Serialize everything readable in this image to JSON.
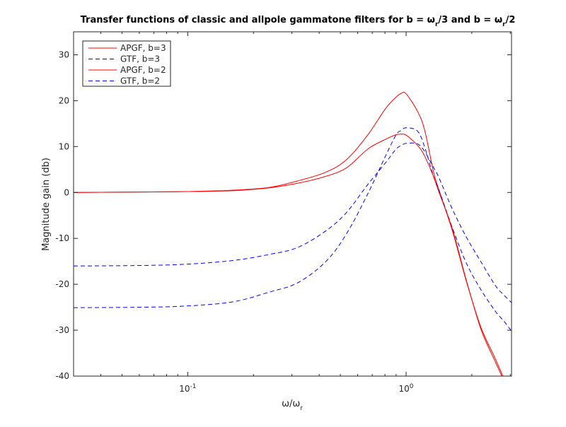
{
  "chart_data": {
    "type": "line",
    "title_parts": [
      "Transfer functions of classic and allpole gammatone filters for b = ω",
      "r",
      "/3 and b = ω",
      "r",
      "/2"
    ],
    "xlabel_parts": [
      "ω/ω",
      "r"
    ],
    "ylabel": "Magnitude gain (db)",
    "xscale": "log",
    "xlim": [
      0.03,
      3.04
    ],
    "ylim": [
      -40,
      35
    ],
    "yticks": [
      -40,
      -30,
      -20,
      -10,
      0,
      10,
      20,
      30
    ],
    "ytick_labels": [
      "-40",
      "-30",
      "-20",
      "-10",
      "0",
      "10",
      "20",
      "30"
    ],
    "xticks": [
      0.1,
      1
    ],
    "xtick_labels": [
      {
        "base": "10",
        "exp": "-1"
      },
      {
        "base": "10",
        "exp": "0"
      }
    ],
    "grid": false,
    "legend_position": "top-left",
    "x": [
      0.03,
      0.0616,
      0.1,
      0.162,
      0.236,
      0.318,
      0.428,
      0.535,
      0.669,
      0.806,
      0.901,
      0.95,
      1.0,
      1.127,
      1.214,
      1.337,
      1.409,
      1.635,
      1.897,
      2.203,
      2.556,
      2.8,
      3.04
    ],
    "series": [
      {
        "name": "APGF, b=3",
        "color": "#ff0000",
        "dash": "solid",
        "values": [
          0,
          0.1,
          0.2,
          0.5,
          1.1,
          2.5,
          4.4,
          7.2,
          12.6,
          18.3,
          20.8,
          21.6,
          21.5,
          17.7,
          13.7,
          4.4,
          0.8,
          -8.6,
          -19.7,
          -29.4,
          -36.1,
          -40.5,
          -45
        ]
      },
      {
        "name": "GTF, b=3",
        "color": "#0000ff",
        "dash": "dashed",
        "values": [
          -25.1,
          -25,
          -24.7,
          -23.8,
          -21.7,
          -19.7,
          -15.1,
          -8.9,
          -0.2,
          8.0,
          12.6,
          13.5,
          14.1,
          13.4,
          10,
          3.4,
          0.8,
          -7.9,
          -15.6,
          -21.2,
          -25.8,
          -28,
          -30.2
        ]
      },
      {
        "name": "APGF, b=2",
        "color": "#ff0000",
        "dash": "solid",
        "values": [
          0,
          0.1,
          0.2,
          0.4,
          1.0,
          2.0,
          3.5,
          5.4,
          9.5,
          11.6,
          12.6,
          12.7,
          12.5,
          10.3,
          8.0,
          3.4,
          0.3,
          -8.2,
          -19.5,
          -29.8,
          -36.8,
          -41,
          -46
        ]
      },
      {
        "name": "GTF, b=2",
        "color": "#0000ff",
        "dash": "dashed",
        "values": [
          -16,
          -15.9,
          -15.6,
          -14.8,
          -13.5,
          -12,
          -8.4,
          -4.3,
          1.8,
          6.5,
          9.5,
          10.2,
          10.7,
          10.6,
          9.0,
          5.4,
          3.4,
          -3.8,
          -9.9,
          -15.1,
          -20.2,
          -22.3,
          -24
        ]
      }
    ]
  }
}
